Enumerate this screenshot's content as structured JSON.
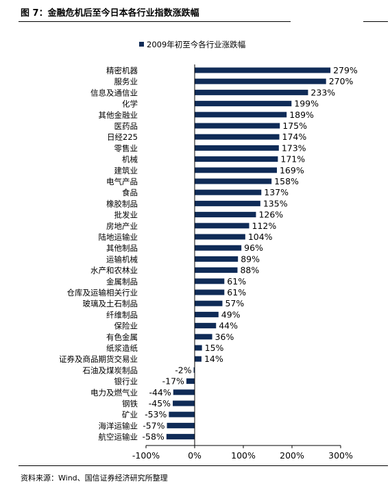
{
  "header": {
    "title": "图 7：金融危机后至今日本各行业指数涨跌幅"
  },
  "footer": {
    "source": "资料来源：Wind、国信证券经济研究所整理"
  },
  "colors": {
    "bar": "#0f2b57"
  },
  "chart_data": {
    "type": "bar",
    "orientation": "horizontal",
    "legend": {
      "label": "2009年初至今各行业涨跌幅",
      "position": "top"
    },
    "categories": [
      "精密机器",
      "服务业",
      "信息及通信业",
      "化学",
      "其他金融业",
      "医药品",
      "日经225",
      "零售业",
      "机械",
      "建筑业",
      "电气产品",
      "食品",
      "橡胶制品",
      "批发业",
      "房地产业",
      "陆地运输业",
      "其他制品",
      "运输机械",
      "水产和农林业",
      "金属制品",
      "仓库及运输相关行业",
      "玻璃及土石制品",
      "纤维制品",
      "保险业",
      "有色金属",
      "纸浆造纸",
      "证券及商品期货交易业",
      "石油及煤炭制品",
      "银行业",
      "电力及燃气业",
      "钢铁",
      "矿业",
      "海洋运输业",
      "航空运输业"
    ],
    "values": [
      279,
      270,
      233,
      199,
      189,
      175,
      174,
      173,
      171,
      169,
      158,
      137,
      135,
      126,
      112,
      104,
      96,
      89,
      88,
      61,
      61,
      57,
      49,
      44,
      36,
      15,
      14,
      -2,
      -17,
      -44,
      -45,
      -53,
      -57,
      -58
    ],
    "value_labels": [
      "279%",
      "270%",
      "233%",
      "199%",
      "189%",
      "175%",
      "174%",
      "173%",
      "171%",
      "169%",
      "158%",
      "137%",
      "135%",
      "126%",
      "112%",
      "104%",
      "96%",
      "89%",
      "88%",
      "61%",
      "61%",
      "57%",
      "49%",
      "44%",
      "36%",
      "15%",
      "14%",
      "-2%",
      "-17%",
      "-44%",
      "-45%",
      "-53%",
      "-57%",
      "-58%"
    ],
    "xlim": [
      -100,
      300
    ],
    "xticks": [
      -100,
      0,
      100,
      200,
      300
    ],
    "xtick_labels": [
      "-100%",
      "0%",
      "100%",
      "200%",
      "300%"
    ],
    "grid": false
  }
}
